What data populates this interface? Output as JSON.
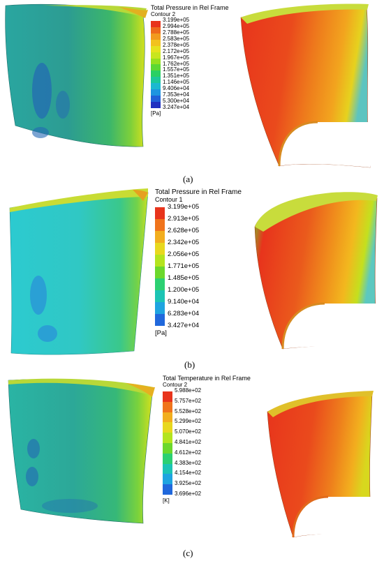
{
  "panels": [
    {
      "label": "(a)",
      "legend": {
        "title": "Total Pressure in Rel Frame",
        "subtitle": "Contour 2",
        "unit": "[Pa]",
        "values": [
          "3.199e+05",
          "2.994e+05",
          "2.788e+05",
          "2.583e+05",
          "2.378e+05",
          "2.172e+05",
          "1.967e+05",
          "1.762e+05",
          "1.557e+05",
          "1.351e+05",
          "1.146e+05",
          "9.406e+04",
          "7.353e+04",
          "5.300e+04",
          "3.247e+04"
        ],
        "colors": [
          "#e8341c",
          "#ee6a1c",
          "#f29a1e",
          "#f2c21e",
          "#e6e21e",
          "#c8e61e",
          "#96e01e",
          "#5cd832",
          "#2ad064",
          "#1cc89a",
          "#1cb8d0",
          "#1e94e0",
          "#2060d8",
          "#2030c0"
        ]
      }
    },
    {
      "label": "(b)",
      "legend": {
        "title": "Total Pressure in Rel Frame",
        "subtitle": "Contour 1",
        "unit": "[Pa]",
        "values": [
          "3.199e+05",
          "2.913e+05",
          "2.628e+05",
          "2.342e+05",
          "2.056e+05",
          "1.771e+05",
          "1.485e+05",
          "1.200e+05",
          "9.140e+04",
          "6.283e+04",
          "3.427e+04"
        ],
        "colors": [
          "#e8341c",
          "#f0741c",
          "#f2ae1e",
          "#e8d81e",
          "#b4e41e",
          "#6cd82c",
          "#2cd072",
          "#1cc4b4",
          "#1ea4e0",
          "#2068dc"
        ]
      }
    },
    {
      "label": "(c)",
      "legend": {
        "title": "Total Temperature in Rel Frame",
        "subtitle": "Contour 2",
        "unit": "[K]",
        "values": [
          "5.988e+02",
          "5.757e+02",
          "5.528e+02",
          "5.299e+02",
          "5.070e+02",
          "4.841e+02",
          "4.612e+02",
          "4.383e+02",
          "4.154e+02",
          "3.925e+02",
          "3.696e+02"
        ],
        "colors": [
          "#e8341c",
          "#f0741c",
          "#f2ae1e",
          "#e8d81e",
          "#b4e41e",
          "#6cd82c",
          "#2cd072",
          "#1cc4b4",
          "#1ea4e0",
          "#2068dc"
        ]
      }
    }
  ]
}
